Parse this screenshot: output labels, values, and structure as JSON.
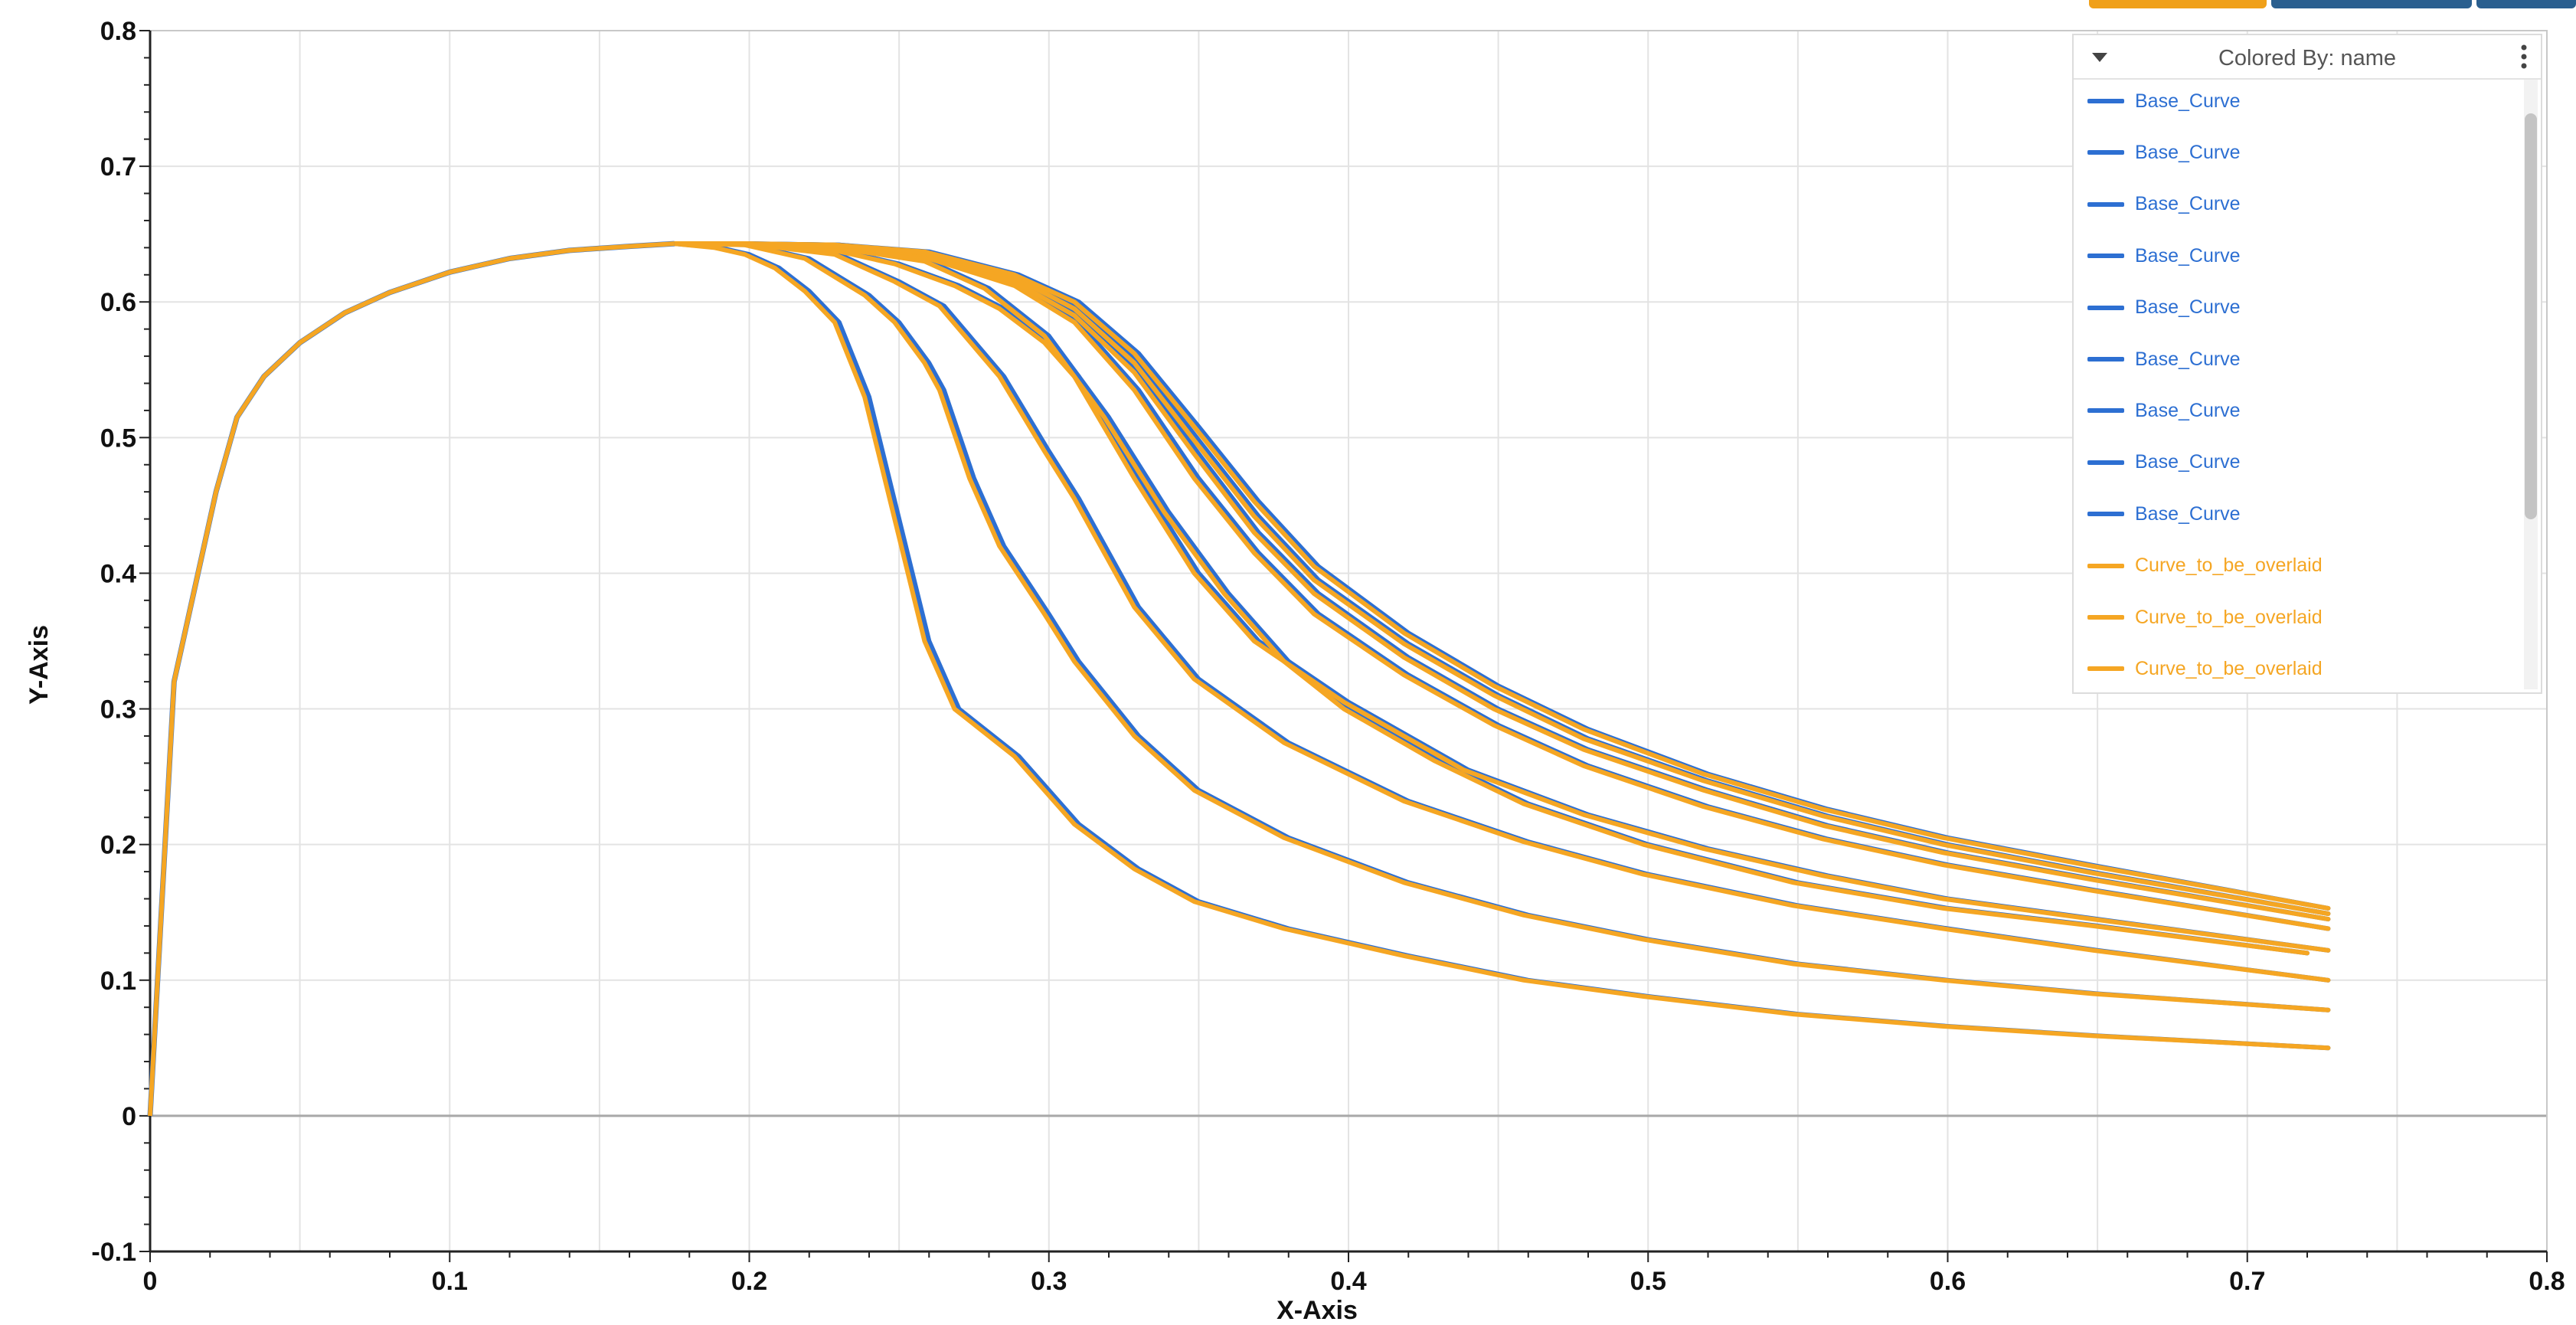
{
  "top_bars": [
    {
      "color": "#f0a019"
    },
    {
      "color": "#2a5f8f"
    },
    {
      "color": "#2a5f8f"
    }
  ],
  "legend": {
    "title": "Colored By: name",
    "collapse_icon": "caret-down-icon",
    "menu_icon": "kebab-menu-icon",
    "items": [
      {
        "label": "Base_Curve",
        "color": "#2d6fd2"
      },
      {
        "label": "Base_Curve",
        "color": "#2d6fd2"
      },
      {
        "label": "Base_Curve",
        "color": "#2d6fd2"
      },
      {
        "label": "Base_Curve",
        "color": "#2d6fd2"
      },
      {
        "label": "Base_Curve",
        "color": "#2d6fd2"
      },
      {
        "label": "Base_Curve",
        "color": "#2d6fd2"
      },
      {
        "label": "Base_Curve",
        "color": "#2d6fd2"
      },
      {
        "label": "Base_Curve",
        "color": "#2d6fd2"
      },
      {
        "label": "Base_Curve",
        "color": "#2d6fd2"
      },
      {
        "label": "Curve_to_be_overlaid",
        "color": "#f5a623"
      },
      {
        "label": "Curve_to_be_overlaid",
        "color": "#f5a623"
      },
      {
        "label": "Curve_to_be_overlaid",
        "color": "#f5a623"
      }
    ]
  },
  "chart_data": {
    "type": "line",
    "title": "",
    "xlabel": "X-Axis",
    "ylabel": "Y-Axis",
    "xlim": [
      0,
      0.8
    ],
    "ylim": [
      -0.1,
      0.8
    ],
    "xticks": [
      "0",
      "0.1",
      "0.2",
      "0.3",
      "0.4",
      "0.5",
      "0.6",
      "0.7",
      "0.8"
    ],
    "yticks": [
      "-0.1",
      "0",
      "0.1",
      "0.2",
      "0.3",
      "0.4",
      "0.5",
      "0.6",
      "0.7",
      "0.8"
    ],
    "grid": true,
    "legend_position": "top-right",
    "colors": {
      "base": "#2d6fd2",
      "overlay": "#f5a623"
    },
    "rising_segment": {
      "x": [
        0,
        0.008,
        0.022,
        0.029,
        0.038,
        0.05,
        0.065,
        0.08,
        0.1,
        0.12,
        0.14,
        0.16,
        0.175
      ],
      "y": [
        0,
        0.32,
        0.46,
        0.515,
        0.545,
        0.57,
        0.592,
        0.607,
        0.622,
        0.632,
        0.638,
        0.641,
        0.643
      ]
    },
    "series": [
      {
        "x": [
          0.175,
          0.19,
          0.2,
          0.21,
          0.22,
          0.23,
          0.24,
          0.25,
          0.26,
          0.27,
          0.29,
          0.31,
          0.33,
          0.35,
          0.38,
          0.42,
          0.46,
          0.5,
          0.55,
          0.6,
          0.65,
          0.727
        ],
        "y": [
          0.643,
          0.64,
          0.635,
          0.625,
          0.608,
          0.585,
          0.53,
          0.44,
          0.35,
          0.3,
          0.265,
          0.215,
          0.182,
          0.158,
          0.138,
          0.118,
          0.1,
          0.088,
          0.075,
          0.066,
          0.059,
          0.05
        ]
      },
      {
        "x": [
          0.175,
          0.2,
          0.22,
          0.24,
          0.25,
          0.26,
          0.265,
          0.275,
          0.285,
          0.3,
          0.31,
          0.33,
          0.35,
          0.38,
          0.42,
          0.46,
          0.5,
          0.55,
          0.6,
          0.65,
          0.727
        ],
        "y": [
          0.643,
          0.642,
          0.632,
          0.605,
          0.585,
          0.555,
          0.535,
          0.47,
          0.42,
          0.37,
          0.335,
          0.28,
          0.24,
          0.205,
          0.172,
          0.148,
          0.13,
          0.112,
          0.1,
          0.09,
          0.078
        ]
      },
      {
        "x": [
          0.175,
          0.2,
          0.23,
          0.25,
          0.265,
          0.285,
          0.3,
          0.31,
          0.33,
          0.35,
          0.38,
          0.42,
          0.46,
          0.5,
          0.55,
          0.6,
          0.65,
          0.727
        ],
        "y": [
          0.643,
          0.643,
          0.635,
          0.615,
          0.597,
          0.545,
          0.49,
          0.455,
          0.375,
          0.322,
          0.275,
          0.232,
          0.202,
          0.178,
          0.155,
          0.138,
          0.122,
          0.1
        ]
      },
      {
        "x": [
          0.175,
          0.2,
          0.23,
          0.25,
          0.27,
          0.285,
          0.3,
          0.31,
          0.33,
          0.35,
          0.37,
          0.4,
          0.44,
          0.48,
          0.52,
          0.56,
          0.6,
          0.65,
          0.727
        ],
        "y": [
          0.643,
          0.643,
          0.638,
          0.628,
          0.612,
          0.595,
          0.57,
          0.545,
          0.47,
          0.4,
          0.35,
          0.305,
          0.255,
          0.222,
          0.197,
          0.177,
          0.16,
          0.145,
          0.122
        ]
      },
      {
        "x": [
          0.175,
          0.2,
          0.23,
          0.26,
          0.28,
          0.3,
          0.32,
          0.34,
          0.36,
          0.38,
          0.4,
          0.43,
          0.46,
          0.5,
          0.55,
          0.6,
          0.65,
          0.72
        ],
        "y": [
          0.643,
          0.643,
          0.64,
          0.63,
          0.61,
          0.575,
          0.515,
          0.445,
          0.385,
          0.335,
          0.3,
          0.262,
          0.23,
          0.2,
          0.172,
          0.153,
          0.14,
          0.12
        ]
      },
      {
        "x": [
          0.175,
          0.2,
          0.23,
          0.26,
          0.29,
          0.31,
          0.33,
          0.35,
          0.37,
          0.39,
          0.42,
          0.45,
          0.48,
          0.52,
          0.56,
          0.6,
          0.65,
          0.727
        ],
        "y": [
          0.643,
          0.643,
          0.641,
          0.633,
          0.612,
          0.585,
          0.535,
          0.47,
          0.415,
          0.37,
          0.325,
          0.288,
          0.258,
          0.228,
          0.204,
          0.185,
          0.166,
          0.138
        ]
      },
      {
        "x": [
          0.175,
          0.2,
          0.23,
          0.26,
          0.29,
          0.31,
          0.33,
          0.35,
          0.37,
          0.39,
          0.42,
          0.45,
          0.48,
          0.52,
          0.56,
          0.6,
          0.65,
          0.727
        ],
        "y": [
          0.643,
          0.643,
          0.641,
          0.635,
          0.615,
          0.59,
          0.548,
          0.488,
          0.43,
          0.385,
          0.338,
          0.3,
          0.27,
          0.24,
          0.214,
          0.194,
          0.174,
          0.145
        ]
      },
      {
        "x": [
          0.175,
          0.2,
          0.23,
          0.26,
          0.29,
          0.31,
          0.33,
          0.35,
          0.37,
          0.39,
          0.42,
          0.45,
          0.48,
          0.52,
          0.56,
          0.6,
          0.65,
          0.727
        ],
        "y": [
          0.643,
          0.643,
          0.642,
          0.636,
          0.618,
          0.595,
          0.555,
          0.498,
          0.442,
          0.395,
          0.348,
          0.31,
          0.278,
          0.247,
          0.221,
          0.2,
          0.179,
          0.149
        ]
      },
      {
        "x": [
          0.175,
          0.2,
          0.23,
          0.26,
          0.29,
          0.31,
          0.33,
          0.35,
          0.37,
          0.39,
          0.42,
          0.45,
          0.48,
          0.52,
          0.56,
          0.6,
          0.65,
          0.727
        ],
        "y": [
          0.643,
          0.643,
          0.642,
          0.637,
          0.62,
          0.6,
          0.562,
          0.508,
          0.453,
          0.405,
          0.356,
          0.317,
          0.285,
          0.252,
          0.226,
          0.205,
          0.184,
          0.153
        ]
      }
    ]
  }
}
